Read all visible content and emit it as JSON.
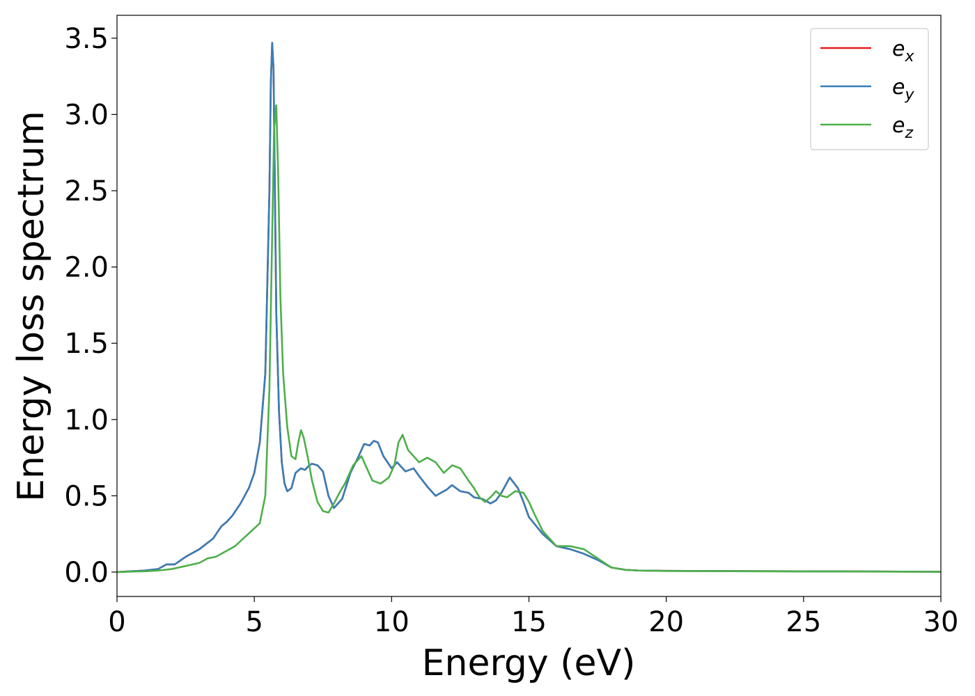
{
  "chart_data": {
    "type": "line",
    "xlabel": "Energy (eV)",
    "ylabel": "Energy loss spectrum",
    "xlim": [
      0,
      30
    ],
    "ylim": [
      -0.16,
      3.65
    ],
    "xticks": [
      0,
      5,
      10,
      15,
      20,
      25,
      30
    ],
    "yticks": [
      0.0,
      0.5,
      1.0,
      1.5,
      2.0,
      2.5,
      3.0,
      3.5
    ],
    "grid": false,
    "legend_position": "top-right",
    "series": [
      {
        "name": "e_x",
        "color": "#e41a1c",
        "x": [
          0,
          0.5,
          1,
          1.5,
          1.8,
          2.1,
          2.5,
          3,
          3.5,
          3.8,
          4,
          4.2,
          4.5,
          4.8,
          5,
          5.2,
          5.4,
          5.55,
          5.6,
          5.65,
          5.7,
          5.75,
          5.8,
          5.9,
          6,
          6.1,
          6.2,
          6.35,
          6.5,
          6.7,
          6.85,
          7,
          7.1,
          7.3,
          7.5,
          7.7,
          7.9,
          8.2,
          8.5,
          8.8,
          9,
          9.2,
          9.35,
          9.5,
          9.7,
          10,
          10.2,
          10.5,
          10.8,
          11,
          11.3,
          11.6,
          12,
          12.2,
          12.5,
          12.8,
          13,
          13.3,
          13.6,
          13.8,
          14,
          14.3,
          14.6,
          14.8,
          15,
          15.5,
          16,
          16.5,
          17,
          17.5,
          18,
          18.5,
          19,
          20,
          25,
          30
        ],
        "values": [
          0.0,
          0.005,
          0.01,
          0.02,
          0.05,
          0.05,
          0.1,
          0.15,
          0.22,
          0.3,
          0.33,
          0.37,
          0.45,
          0.55,
          0.65,
          0.85,
          1.3,
          2.5,
          3.2,
          3.47,
          3.3,
          2.5,
          1.7,
          1.05,
          0.72,
          0.58,
          0.53,
          0.55,
          0.65,
          0.68,
          0.67,
          0.7,
          0.71,
          0.7,
          0.66,
          0.5,
          0.42,
          0.48,
          0.65,
          0.76,
          0.84,
          0.83,
          0.86,
          0.85,
          0.76,
          0.68,
          0.72,
          0.66,
          0.68,
          0.63,
          0.56,
          0.5,
          0.54,
          0.57,
          0.53,
          0.52,
          0.49,
          0.48,
          0.45,
          0.47,
          0.52,
          0.62,
          0.55,
          0.46,
          0.36,
          0.25,
          0.17,
          0.15,
          0.12,
          0.08,
          0.03,
          0.015,
          0.01,
          0.008,
          0.005,
          0.002
        ]
      },
      {
        "name": "e_y",
        "color": "#377eb8",
        "x": [
          0,
          0.5,
          1,
          1.5,
          1.8,
          2.1,
          2.5,
          3,
          3.5,
          3.8,
          4,
          4.2,
          4.5,
          4.8,
          5,
          5.2,
          5.4,
          5.55,
          5.6,
          5.65,
          5.7,
          5.75,
          5.8,
          5.9,
          6,
          6.1,
          6.2,
          6.35,
          6.5,
          6.7,
          6.85,
          7,
          7.1,
          7.3,
          7.5,
          7.7,
          7.9,
          8.2,
          8.5,
          8.8,
          9,
          9.2,
          9.35,
          9.5,
          9.7,
          10,
          10.2,
          10.5,
          10.8,
          11,
          11.3,
          11.6,
          12,
          12.2,
          12.5,
          12.8,
          13,
          13.3,
          13.6,
          13.8,
          14,
          14.3,
          14.6,
          14.8,
          15,
          15.5,
          16,
          16.5,
          17,
          17.5,
          18,
          18.5,
          19,
          20,
          25,
          30
        ],
        "values": [
          0.0,
          0.005,
          0.01,
          0.02,
          0.05,
          0.05,
          0.1,
          0.15,
          0.22,
          0.3,
          0.33,
          0.37,
          0.45,
          0.55,
          0.65,
          0.85,
          1.3,
          2.5,
          3.2,
          3.47,
          3.3,
          2.5,
          1.7,
          1.05,
          0.72,
          0.58,
          0.53,
          0.55,
          0.65,
          0.68,
          0.67,
          0.7,
          0.71,
          0.7,
          0.66,
          0.5,
          0.42,
          0.48,
          0.65,
          0.76,
          0.84,
          0.83,
          0.86,
          0.85,
          0.76,
          0.68,
          0.72,
          0.66,
          0.68,
          0.63,
          0.56,
          0.5,
          0.54,
          0.57,
          0.53,
          0.52,
          0.49,
          0.48,
          0.45,
          0.47,
          0.52,
          0.62,
          0.55,
          0.46,
          0.36,
          0.25,
          0.17,
          0.15,
          0.12,
          0.08,
          0.03,
          0.015,
          0.01,
          0.008,
          0.005,
          0.002
        ]
      },
      {
        "name": "e_z",
        "color": "#4daf4a",
        "x": [
          0,
          0.5,
          1,
          1.5,
          2,
          2.5,
          3,
          3.3,
          3.6,
          4,
          4.3,
          4.6,
          4.9,
          5.2,
          5.4,
          5.55,
          5.65,
          5.72,
          5.8,
          5.87,
          5.95,
          6.05,
          6.2,
          6.35,
          6.5,
          6.6,
          6.7,
          6.8,
          6.95,
          7.1,
          7.3,
          7.5,
          7.7,
          7.9,
          8.1,
          8.3,
          8.6,
          8.9,
          9.1,
          9.3,
          9.6,
          9.9,
          10.1,
          10.25,
          10.4,
          10.6,
          10.8,
          11,
          11.3,
          11.6,
          11.9,
          12.2,
          12.5,
          12.8,
          13,
          13.2,
          13.4,
          13.6,
          13.8,
          14,
          14.2,
          14.5,
          14.8,
          15,
          15.2,
          15.5,
          16,
          16.5,
          17,
          17.5,
          18,
          18.5,
          19,
          20,
          25,
          30
        ],
        "values": [
          0.0,
          0.003,
          0.005,
          0.01,
          0.02,
          0.04,
          0.06,
          0.09,
          0.1,
          0.14,
          0.17,
          0.22,
          0.27,
          0.32,
          0.5,
          1.2,
          2.2,
          2.9,
          3.06,
          2.6,
          1.8,
          1.3,
          0.95,
          0.76,
          0.74,
          0.85,
          0.93,
          0.88,
          0.75,
          0.6,
          0.46,
          0.4,
          0.39,
          0.45,
          0.52,
          0.58,
          0.7,
          0.76,
          0.68,
          0.6,
          0.58,
          0.62,
          0.7,
          0.85,
          0.9,
          0.8,
          0.76,
          0.72,
          0.75,
          0.72,
          0.65,
          0.7,
          0.68,
          0.6,
          0.55,
          0.49,
          0.46,
          0.49,
          0.53,
          0.5,
          0.49,
          0.53,
          0.52,
          0.46,
          0.38,
          0.27,
          0.17,
          0.17,
          0.15,
          0.09,
          0.03,
          0.015,
          0.01,
          0.007,
          0.004,
          0.002
        ]
      }
    ],
    "legend_labels": [
      {
        "base": "e",
        "sub": "x"
      },
      {
        "base": "e",
        "sub": "y"
      },
      {
        "base": "e",
        "sub": "z"
      }
    ]
  }
}
